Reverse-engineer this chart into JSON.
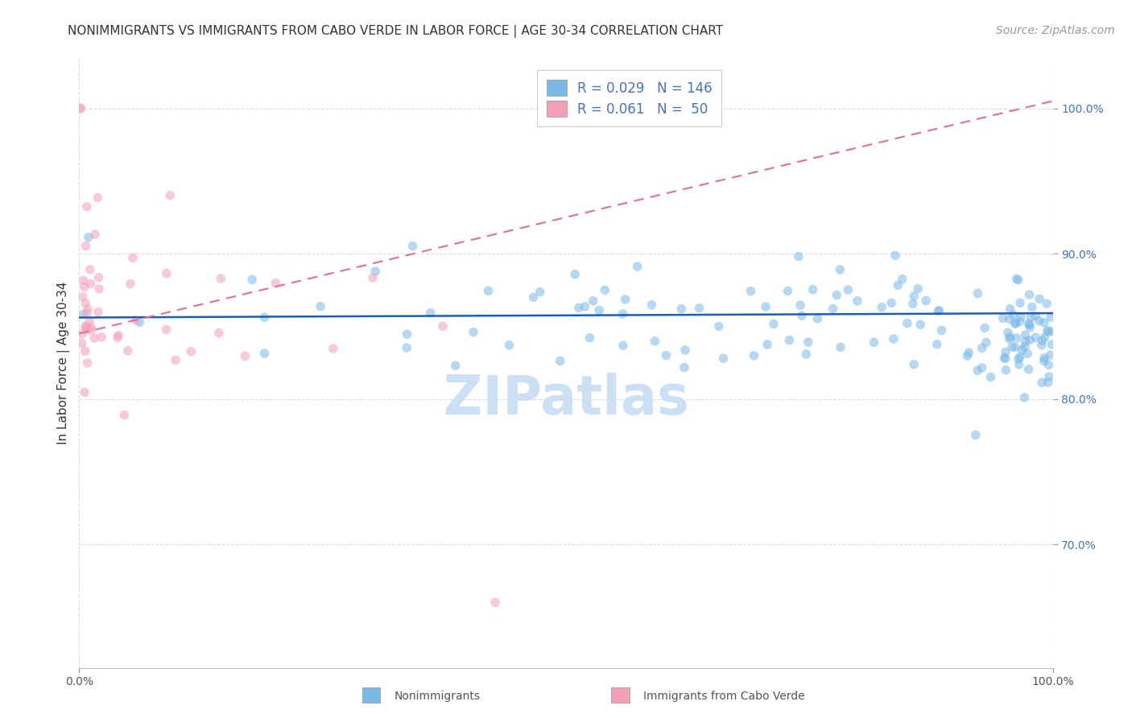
{
  "title": "NONIMMIGRANTS VS IMMIGRANTS FROM CABO VERDE IN LABOR FORCE | AGE 30-34 CORRELATION CHART",
  "source": "Source: ZipAtlas.com",
  "ylabel": "In Labor Force | Age 30-34",
  "x_range": [
    0.0,
    1.0
  ],
  "y_range": [
    0.615,
    1.035
  ],
  "y_ticks": [
    0.7,
    0.8,
    0.9,
    1.0
  ],
  "x_ticks": [
    0.0,
    1.0
  ],
  "scatter_size": 70,
  "scatter_alpha": 0.55,
  "blue_color": "#7ab8e8",
  "pink_color": "#f4a0b8",
  "blue_line_color": "#1a5fb4",
  "pink_line_color": "#e07090",
  "grid_color": "#dddddd",
  "watermark": "ZIPatlas",
  "watermark_color": "#cce0f5",
  "watermark_fontsize": 48,
  "background_color": "#ffffff",
  "title_fontsize": 11,
  "axis_label_fontsize": 11,
  "tick_fontsize": 10,
  "source_fontsize": 10,
  "legend_fontsize": 12,
  "blue_trend_x": [
    0.0,
    1.0
  ],
  "blue_trend_y": [
    0.856,
    0.859
  ],
  "pink_trend_x": [
    0.0,
    1.0
  ],
  "pink_trend_y": [
    0.845,
    1.005
  ]
}
